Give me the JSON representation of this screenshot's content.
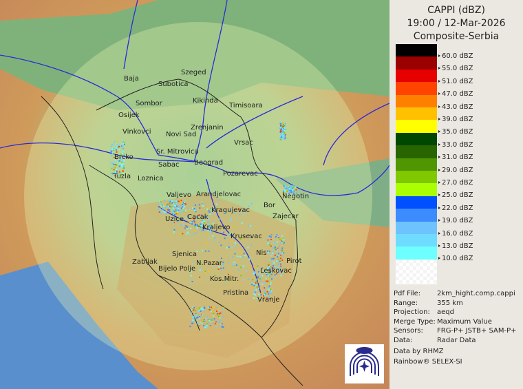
{
  "header": {
    "title": "CAPPI (dBZ)",
    "datetime": "19:00 / 12-Mar-2026",
    "product": "Composite-Serbia"
  },
  "legend": {
    "items": [
      {
        "label": "60.0 dBZ",
        "color": "#000000"
      },
      {
        "label": "55.0 dBZ",
        "color": "#9b0000"
      },
      {
        "label": "51.0 dBZ",
        "color": "#e60000"
      },
      {
        "label": "47.0 dBZ",
        "color": "#ff4400"
      },
      {
        "label": "43.0 dBZ",
        "color": "#ff8000"
      },
      {
        "label": "39.0 dBZ",
        "color": "#ffc000"
      },
      {
        "label": "35.0 dBZ",
        "color": "#ffff00"
      },
      {
        "label": "33.0 dBZ",
        "color": "#004800"
      },
      {
        "label": "31.0 dBZ",
        "color": "#286400"
      },
      {
        "label": "29.0 dBZ",
        "color": "#509600"
      },
      {
        "label": "27.0 dBZ",
        "color": "#80c800"
      },
      {
        "label": "25.0 dBZ",
        "color": "#aaff00"
      },
      {
        "label": "22.0 dBZ",
        "color": "#0050ff"
      },
      {
        "label": "19.0 dBZ",
        "color": "#3c8cff"
      },
      {
        "label": "16.0 dBZ",
        "color": "#6ec3ff"
      },
      {
        "label": "13.0 dBZ",
        "color": "#6edcff"
      },
      {
        "label": "10.0 dBZ",
        "color": "#6effff"
      }
    ]
  },
  "info": {
    "pdf_file": {
      "key": "Pdf File:",
      "value": "2km_hight.comp.cappi"
    },
    "range": {
      "key": "Range:",
      "value": "355 km"
    },
    "projection": {
      "key": "Projection:",
      "value": "aeqd"
    },
    "merge_type": {
      "key": "Merge Type:",
      "value": "Maximum Value"
    },
    "sensors": {
      "key": "Sensors:",
      "value": "FRG-P+ JSTB+ SAM-P+"
    },
    "data": {
      "key": "Data:",
      "value": "Radar Data"
    },
    "credit": "Data by RHMZ",
    "software": "Rainbow® SELEX-SI"
  },
  "map": {
    "cities": [
      "Baja",
      "Szeged",
      "Subotica",
      "Sombor",
      "Kikinda",
      "Timisoara",
      "Osijek",
      "Vinkovci",
      "Zrenjanin",
      "Novi Sad",
      "Vrsac",
      "Sr. Mitrovica",
      "Brcko",
      "Sabac",
      "Beograd",
      "Pozarevac",
      "Tuzla",
      "Loznica",
      "Valjevo",
      "Arandjelovac",
      "Negotin",
      "Bor",
      "Kragujevac",
      "Zajecar",
      "Uzice",
      "Cacak",
      "Kraljevo",
      "Krusevac",
      "Nis",
      "Sjenica",
      "Zabljak",
      "N.Pazar",
      "Pirot",
      "Bijelo Polje",
      "Leskovac",
      "Kos.Mitr.",
      "Pristina",
      "Vranje"
    ],
    "logo": "RHMZ"
  }
}
